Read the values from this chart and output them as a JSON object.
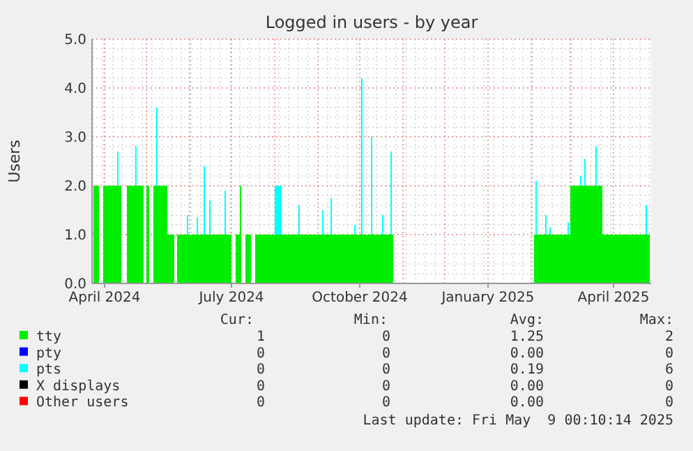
{
  "chart_data": {
    "type": "area",
    "title": "Logged in users - by year",
    "ylabel": "Users",
    "stacked": true,
    "grid": true,
    "legend": "bottom",
    "xlim": [
      "2024-03-23",
      "2025-04-28"
    ],
    "xticks": [
      {
        "value": "2024-04-01",
        "label": "April 2024"
      },
      {
        "value": "2024-07-01",
        "label": "July 2024"
      },
      {
        "value": "2024-10-01",
        "label": "October 2024"
      },
      {
        "value": "2025-01-01",
        "label": "January 2025"
      },
      {
        "value": "2025-04-01",
        "label": "April 2025"
      }
    ],
    "ylim": [
      0,
      5
    ],
    "yticks": [
      {
        "value": 0,
        "label": "0.0"
      },
      {
        "value": 1,
        "label": "1.0"
      },
      {
        "value": 2,
        "label": "2.0"
      },
      {
        "value": 3,
        "label": "3.0"
      },
      {
        "value": 4,
        "label": "4.0"
      },
      {
        "value": 5,
        "label": "5.0"
      }
    ],
    "x": [
      "2024-03-24",
      "2024-03-28",
      "2024-03-31",
      "2024-04-10",
      "2024-04-11",
      "2024-04-13",
      "2024-04-17",
      "2024-04-23",
      "2024-04-24",
      "2024-04-29",
      "2024-05-01",
      "2024-05-03",
      "2024-05-06",
      "2024-05-08",
      "2024-05-09",
      "2024-05-16",
      "2024-05-21",
      "2024-05-23",
      "2024-05-30",
      "2024-05-31",
      "2024-06-06",
      "2024-06-07",
      "2024-06-11",
      "2024-06-12",
      "2024-06-15",
      "2024-06-16",
      "2024-06-26",
      "2024-06-27",
      "2024-07-01",
      "2024-07-04",
      "2024-07-07",
      "2024-07-08",
      "2024-07-11",
      "2024-07-15",
      "2024-07-18",
      "2024-08-01",
      "2024-08-06",
      "2024-08-18",
      "2024-08-19",
      "2024-09-04",
      "2024-09-05",
      "2024-09-10",
      "2024-09-11",
      "2024-09-27",
      "2024-09-28",
      "2024-10-02",
      "2024-10-03",
      "2024-10-09",
      "2024-10-10",
      "2024-10-17",
      "2024-10-18",
      "2024-10-23",
      "2024-10-24",
      "2024-10-25",
      "2025-02-03",
      "2025-02-04",
      "2025-02-05",
      "2025-02-11",
      "2025-02-12",
      "2025-02-14",
      "2025-02-15",
      "2025-02-27",
      "2025-02-28",
      "2025-03-01",
      "2025-03-08",
      "2025-03-09",
      "2025-03-11",
      "2025-03-12",
      "2025-03-19",
      "2025-03-20",
      "2025-03-24",
      "2025-04-24",
      "2025-04-25",
      "2025-04-27"
    ],
    "series": [
      {
        "name": "tty",
        "color": "#00ee00",
        "values": [
          2,
          0,
          2,
          2,
          2,
          0,
          2,
          2,
          2,
          0,
          2,
          0,
          2,
          2,
          2,
          1,
          0,
          1,
          1,
          1,
          1,
          1,
          1,
          1,
          1,
          1,
          1,
          1,
          0,
          1,
          2,
          0,
          1,
          0,
          1,
          1,
          1,
          1,
          1,
          1,
          1,
          1,
          1,
          1,
          1,
          1,
          1,
          1,
          1,
          1,
          1,
          1,
          1,
          0,
          1,
          1,
          1,
          1,
          1,
          1,
          1,
          1,
          1,
          2,
          2,
          2,
          2,
          2,
          2,
          2,
          1,
          1,
          1,
          1
        ]
      },
      {
        "name": "pty",
        "color": "#0000ff",
        "values": [
          null,
          null,
          null,
          null,
          null,
          null,
          null,
          null,
          null,
          null,
          null,
          null,
          null,
          null,
          null,
          null,
          null,
          null,
          null,
          null,
          null,
          null,
          null,
          null,
          null,
          null,
          null,
          null,
          null,
          null,
          null,
          null,
          null,
          null,
          null,
          null,
          null,
          null,
          null,
          null,
          null,
          null,
          null,
          null,
          null,
          null,
          null,
          null,
          null,
          null,
          null,
          null,
          null,
          null,
          null,
          null,
          null,
          null,
          null,
          null,
          null,
          null,
          null,
          null,
          null,
          null,
          null,
          null,
          null,
          null,
          null,
          null,
          null,
          null
        ]
      },
      {
        "name": "pts",
        "color": "#00ffff",
        "values": [
          0,
          0,
          0,
          0.7,
          0,
          0,
          0,
          0.8,
          0,
          0,
          0,
          0,
          0,
          1.6,
          0,
          0,
          0,
          0,
          0.4,
          0,
          0.35,
          0,
          1.4,
          0,
          0.7,
          0,
          0.9,
          0,
          0,
          0,
          0,
          0,
          0,
          0,
          0,
          1,
          0,
          0.6,
          0,
          0.5,
          0,
          0.75,
          0,
          0.2,
          0,
          3.2,
          0,
          2,
          0,
          0.4,
          0,
          1.7,
          0,
          0,
          0,
          1.1,
          0,
          0.4,
          0,
          0.15,
          0,
          0.25,
          0,
          0,
          0.2,
          0,
          0.55,
          0,
          0.8,
          0,
          0,
          0.6,
          0,
          0
        ]
      },
      {
        "name": "X displays",
        "color": "#000000",
        "values": [
          null,
          null,
          null,
          null,
          null,
          null,
          null,
          null,
          null,
          null,
          null,
          null,
          null,
          null,
          null,
          null,
          null,
          null,
          null,
          null,
          null,
          null,
          null,
          null,
          null,
          null,
          null,
          null,
          null,
          null,
          null,
          null,
          null,
          null,
          null,
          null,
          null,
          null,
          null,
          null,
          null,
          null,
          null,
          null,
          null,
          null,
          null,
          null,
          null,
          null,
          null,
          null,
          null,
          null,
          null,
          null,
          null,
          null,
          null,
          null,
          null,
          null,
          null,
          null,
          null,
          null,
          null,
          null,
          null,
          null,
          null,
          null,
          null,
          null
        ]
      },
      {
        "name": "Other users",
        "color": "#ff0000",
        "values": [
          null,
          null,
          null,
          null,
          null,
          null,
          null,
          null,
          null,
          null,
          null,
          null,
          null,
          null,
          null,
          null,
          null,
          null,
          null,
          null,
          null,
          null,
          null,
          null,
          null,
          null,
          null,
          null,
          null,
          null,
          null,
          null,
          null,
          null,
          null,
          null,
          null,
          null,
          null,
          null,
          null,
          null,
          null,
          null,
          null,
          null,
          null,
          null,
          null,
          null,
          null,
          null,
          null,
          null,
          null,
          null,
          null,
          null,
          null,
          null,
          null,
          null,
          null,
          null,
          null,
          null,
          null,
          null,
          null,
          null,
          null,
          null,
          null,
          null
        ]
      }
    ],
    "annotations": [
      "Cur:",
      "Min:",
      "Avg:",
      "Max:",
      "1",
      "0",
      "1.25",
      "2",
      "0",
      "0",
      "0.00",
      "0",
      "0",
      "0",
      "0.19",
      "6",
      "0",
      "0",
      "0.00",
      "0",
      "0",
      "0",
      "0.00",
      "0",
      "Last update: Fri May  9 00:10:14 2025"
    ]
  }
}
